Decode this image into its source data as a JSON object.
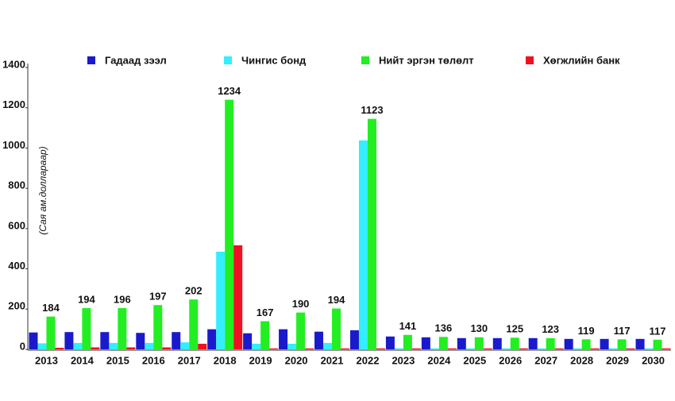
{
  "chart_data": {
    "type": "bar",
    "y_label": "(Сая ам.доллараар)",
    "categories": [
      "2013",
      "2014",
      "2015",
      "2016",
      "2017",
      "2018",
      "2019",
      "2020",
      "2021",
      "2022",
      "2023",
      "2024",
      "2025",
      "2026",
      "2027",
      "2028",
      "2029",
      "2030"
    ],
    "series": [
      {
        "name": "Гадаад зээл",
        "color": "#1a1acc",
        "values": [
          84,
          86,
          86,
          82,
          86,
          100,
          80,
          100,
          88,
          95,
          64,
          60,
          56,
          56,
          56,
          52,
          52,
          52
        ]
      },
      {
        "name": "Чингис бонд",
        "color": "#33eeff",
        "values": [
          30,
          32,
          32,
          32,
          35,
          485,
          28,
          28,
          32,
          1038,
          5,
          5,
          5,
          5,
          5,
          5,
          5,
          5
        ]
      },
      {
        "name": "Нийт эргэн төлөлт",
        "color": "#22ee22",
        "values": [
          163,
          205,
          205,
          220,
          248,
          1240,
          140,
          183,
          203,
          1145,
          72,
          62,
          60,
          58,
          56,
          50,
          50,
          48
        ]
      },
      {
        "name": "Хөгжлийн банк",
        "color": "#ee1122",
        "values": [
          8,
          10,
          10,
          10,
          28,
          517,
          5,
          5,
          5,
          5,
          5,
          5,
          5,
          5,
          5,
          5,
          5,
          5
        ]
      }
    ],
    "total_labels": [
      184,
      194,
      196,
      197,
      202,
      1234,
      167,
      190,
      194,
      1123,
      141,
      136,
      130,
      125,
      123,
      119,
      117,
      117
    ],
    "ylim": [
      0,
      1400
    ],
    "yticks": [
      0,
      200,
      400,
      600,
      800,
      1000,
      1200,
      1400
    ],
    "grid": false
  }
}
